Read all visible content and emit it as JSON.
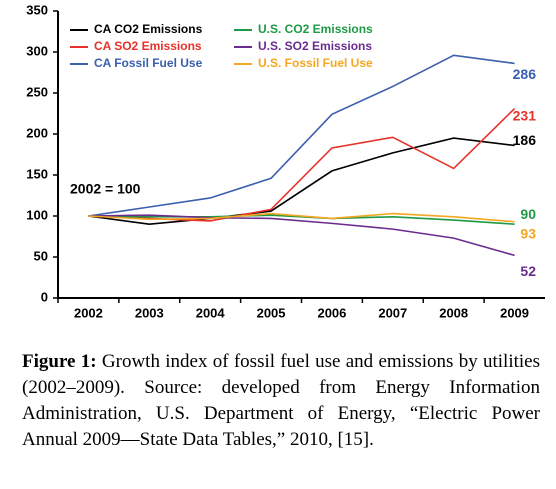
{
  "chart_data": {
    "type": "line",
    "annotation": "2002 = 100",
    "categories": [
      "2002",
      "2003",
      "2004",
      "2005",
      "2006",
      "2007",
      "2008",
      "2009"
    ],
    "series": [
      {
        "name": "CA CO2 Emissions",
        "color": "#000000",
        "values": [
          100,
          90,
          97,
          106,
          155,
          177,
          195,
          186
        ]
      },
      {
        "name": "CA SO2 Emissions",
        "color": "#e8312a",
        "values": [
          100,
          97,
          94,
          108,
          183,
          196,
          158,
          231
        ]
      },
      {
        "name": "CA Fossil Fuel Use",
        "color": "#3a5fae",
        "values": [
          100,
          111,
          122,
          146,
          224,
          258,
          296,
          286
        ]
      },
      {
        "name": "U.S. CO2 Emissions",
        "color": "#1e9a45",
        "values": [
          100,
          99,
          99,
          101,
          97,
          99,
          95,
          90
        ]
      },
      {
        "name": "U.S. SO2 Emissions",
        "color": "#6a2c8e",
        "values": [
          100,
          101,
          98,
          97,
          91,
          84,
          73,
          52
        ]
      },
      {
        "name": "U.S. Fossil Fuel Use",
        "color": "#f5a623",
        "values": [
          100,
          96,
          97,
          103,
          97,
          103,
          99,
          93
        ]
      }
    ],
    "ylim": [
      0,
      350
    ],
    "yticks": [
      0,
      50,
      100,
      150,
      200,
      250,
      300,
      350
    ]
  },
  "caption": {
    "label": "Figure 1:",
    "text": "Growth index of fossil fuel use and emissions by utilities (2002–2009). Source: developed from Energy Information Administration, U.S. Department of Energy, “Electric Power Annual 2009—State Data Tables,” 2010, [15]."
  }
}
